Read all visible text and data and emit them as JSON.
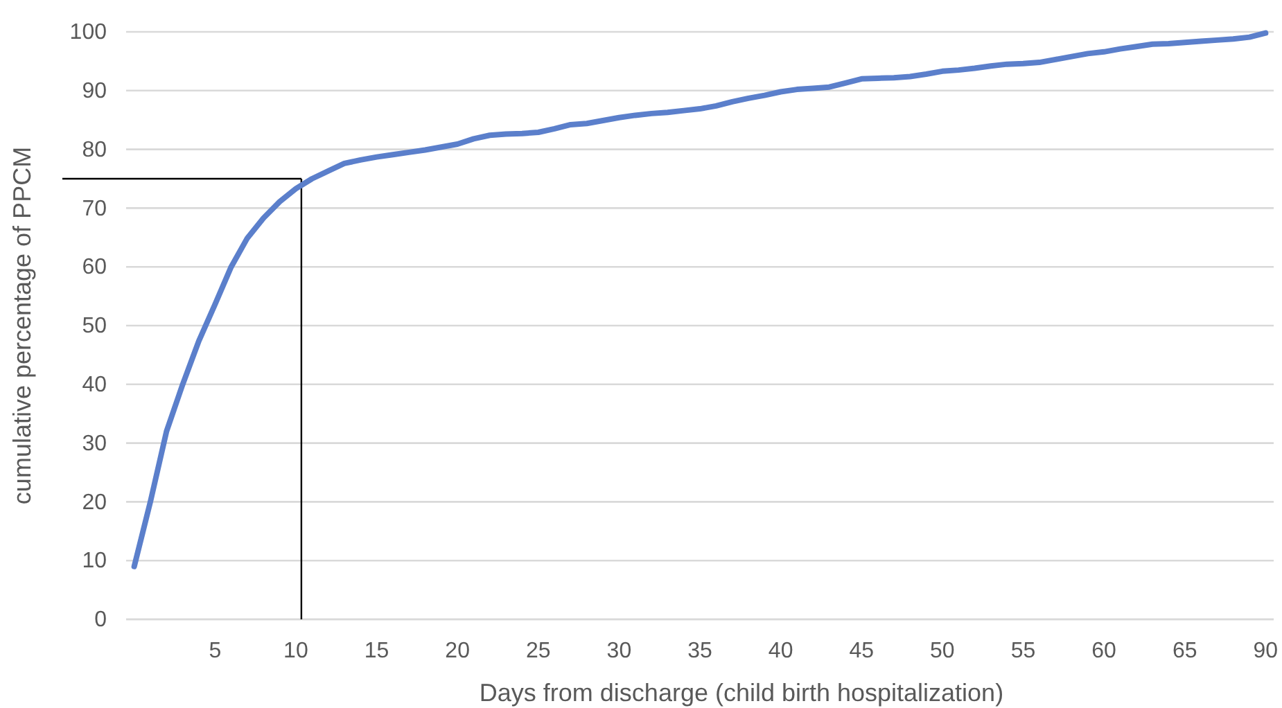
{
  "chart_data": {
    "type": "line",
    "xlabel": "Days from discharge (child birth hospitalization)",
    "ylabel": "cumulative percentage of PPCM",
    "categories": [
      null,
      null,
      null,
      null,
      null,
      "5",
      null,
      null,
      null,
      null,
      "10",
      null,
      null,
      null,
      null,
      "15",
      null,
      null,
      null,
      null,
      "20",
      null,
      null,
      null,
      null,
      "25",
      null,
      null,
      null,
      null,
      "30",
      null,
      null,
      null,
      null,
      "35",
      null,
      null,
      null,
      null,
      "40",
      null,
      null,
      null,
      null,
      "45",
      null,
      null,
      null,
      null,
      "50",
      null,
      null,
      null,
      null,
      "55",
      null,
      null,
      null,
      null,
      "60",
      null,
      null,
      null,
      null,
      "65",
      null,
      null,
      null,
      null,
      "90"
    ],
    "series": [
      {
        "color": "#5b7fcb",
        "values": [
          9,
          20,
          32,
          40,
          47.4,
          53.6,
          60,
          64.9,
          68.3,
          71.1,
          73.3,
          75,
          76.3,
          77.6,
          78.2,
          78.7,
          79.1,
          79.5,
          79.9,
          80.4,
          80.9,
          81.8,
          82.4,
          82.6,
          82.7,
          82.9,
          83.5,
          84.2,
          84.4,
          84.9,
          85.4,
          85.8,
          86.1,
          86.3,
          86.6,
          86.9,
          87.4,
          88.1,
          88.7,
          89.2,
          89.8,
          90.2,
          90.4,
          90.6,
          91.3,
          92,
          92.1,
          92.2,
          92.4,
          92.8,
          93.3,
          93.5,
          93.8,
          94.2,
          94.5,
          94.6,
          94.8,
          95.3,
          95.8,
          96.3,
          96.6,
          97.1,
          97.5,
          97.9,
          98,
          98.2,
          98.4,
          98.6,
          98.8,
          99.1,
          99.8
        ]
      }
    ],
    "ylim": [
      0,
      100
    ],
    "yticks": [
      0,
      10,
      20,
      30,
      40,
      50,
      60,
      70,
      80,
      90,
      100
    ],
    "grid": "y",
    "line_style": "solid",
    "marker": "none",
    "ref_lines": [
      {
        "axis": "y",
        "value": 75,
        "color": "#000000"
      },
      {
        "axis": "x",
        "value": "10",
        "color": "#000000"
      }
    ]
  }
}
